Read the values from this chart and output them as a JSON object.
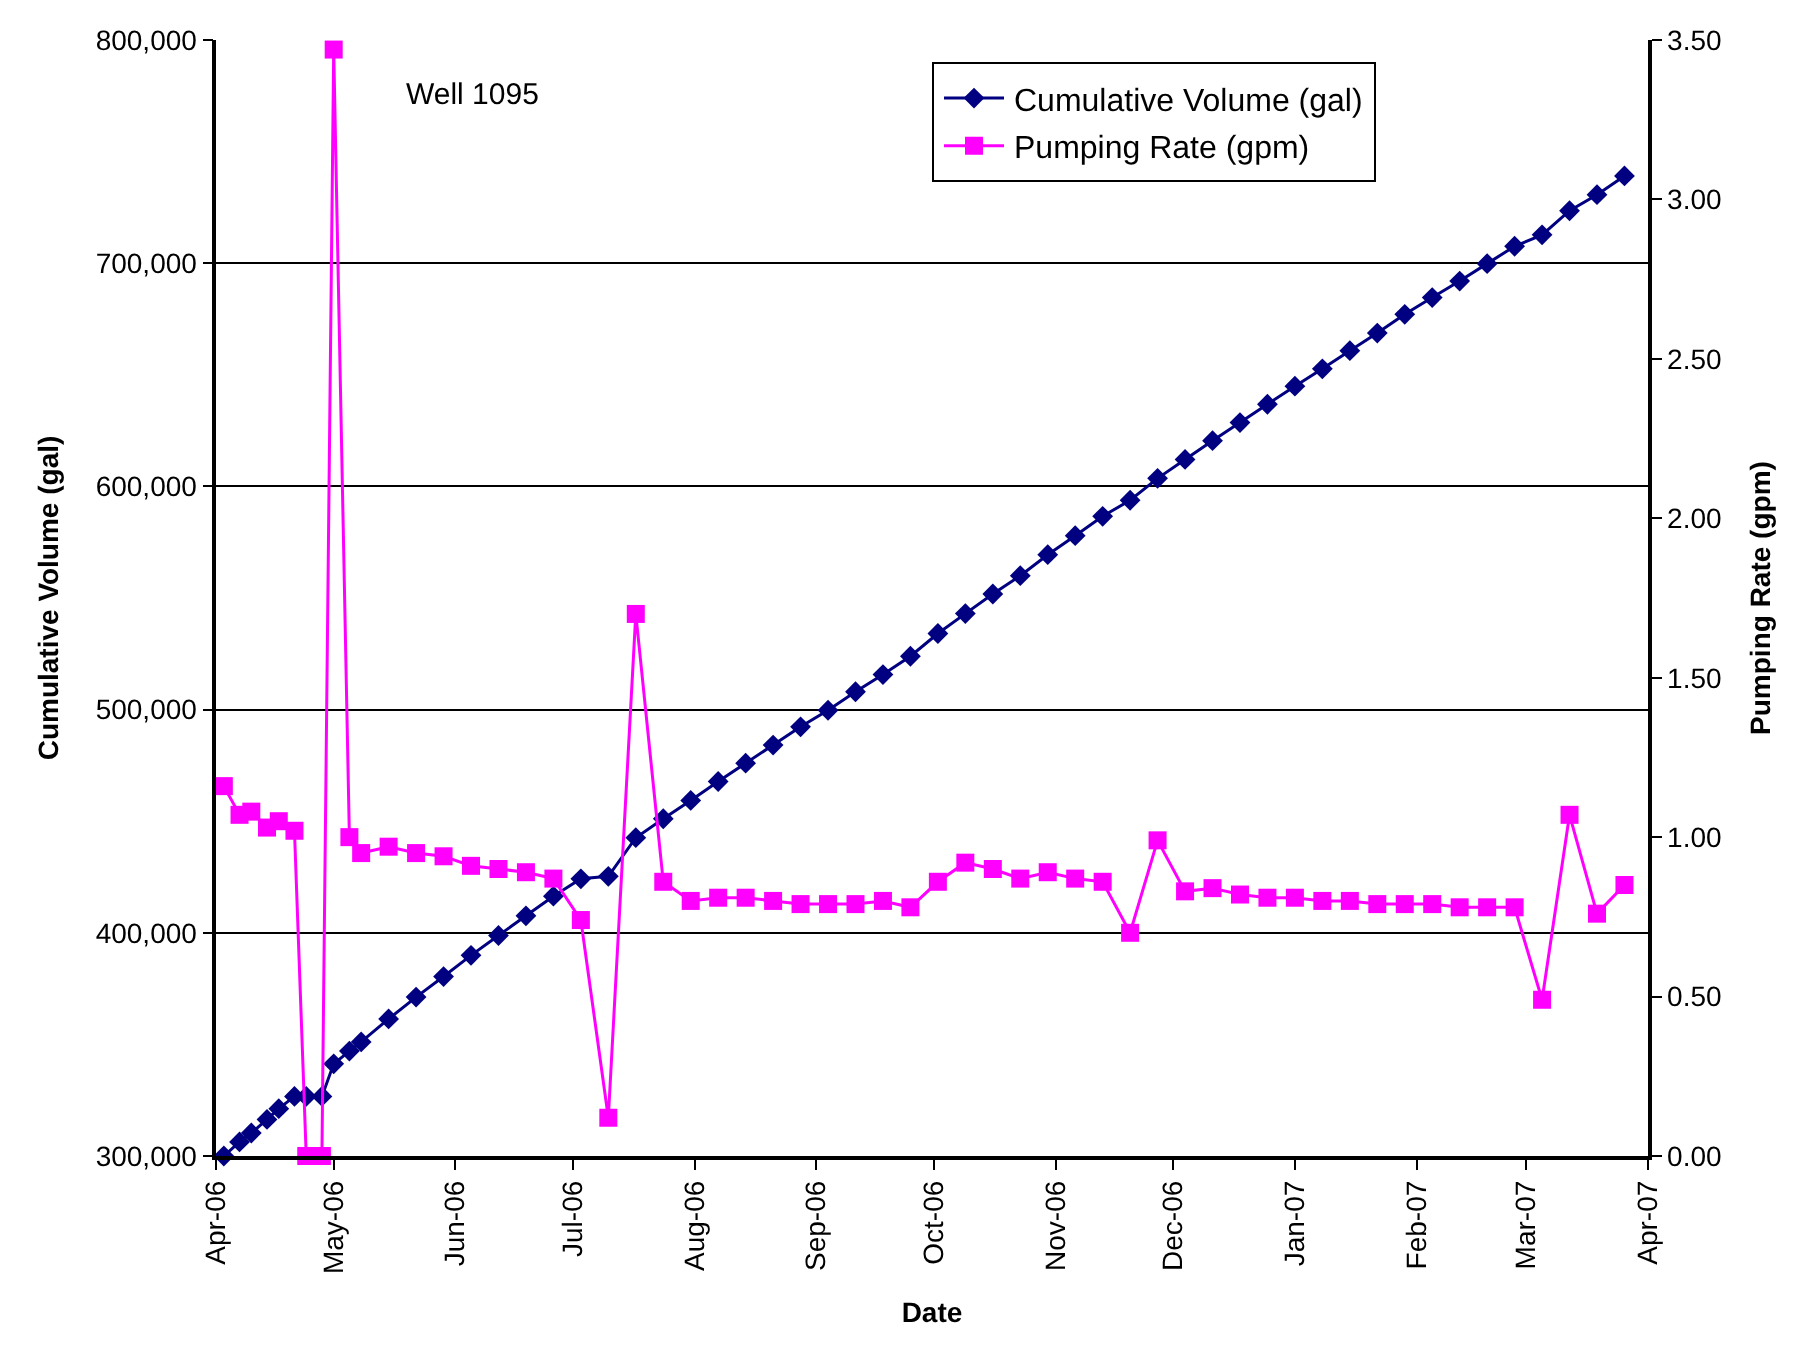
{
  "chart_data": {
    "type": "line",
    "xlabel": "Date",
    "ylabel": "Cumulative Volume (gal)",
    "y2label": "Pumping Rate (gpm)",
    "annotations": [
      "Well 1095"
    ],
    "x": [
      "2006-04-03",
      "2006-04-07",
      "2006-04-10",
      "2006-04-14",
      "2006-04-17",
      "2006-04-21",
      "2006-04-24",
      "2006-04-28",
      "2006-05-01",
      "2006-05-05",
      "2006-05-08",
      "2006-05-15",
      "2006-05-22",
      "2006-05-29",
      "2006-06-05",
      "2006-06-12",
      "2006-06-19",
      "2006-06-26",
      "2006-07-03",
      "2006-07-10",
      "2006-07-17",
      "2006-07-24",
      "2006-07-31",
      "2006-08-07",
      "2006-08-14",
      "2006-08-21",
      "2006-08-28",
      "2006-09-04",
      "2006-09-11",
      "2006-09-18",
      "2006-09-25",
      "2006-10-02",
      "2006-10-09",
      "2006-10-16",
      "2006-10-23",
      "2006-10-30",
      "2006-11-06",
      "2006-11-13",
      "2006-11-20",
      "2006-11-27",
      "2006-12-04",
      "2006-12-11",
      "2006-12-18",
      "2006-12-25",
      "2007-01-01",
      "2007-01-08",
      "2007-01-15",
      "2007-01-22",
      "2007-01-29",
      "2007-02-05",
      "2007-02-12",
      "2007-02-19",
      "2007-02-26",
      "2007-03-05",
      "2007-03-12",
      "2007-03-19",
      "2007-03-26"
    ],
    "series": [
      {
        "name": "Cumulative Volume (gal)",
        "color": "#000080",
        "marker": "diamond",
        "values": [
          300000,
          306300,
          310300,
          316400,
          321200,
          326700,
          326700,
          326700,
          341300,
          347000,
          351100,
          361400,
          371200,
          380400,
          389900,
          398800,
          407600,
          416400,
          424200,
          425300,
          442600,
          451100,
          459300,
          467800,
          476000,
          484100,
          492300,
          499700,
          508000,
          515700,
          523900,
          534100,
          543000,
          551800,
          560000,
          569400,
          577900,
          586600,
          593800,
          603600,
          612100,
          620500,
          628600,
          636800,
          644900,
          652700,
          660800,
          668700,
          677100,
          684600,
          692000,
          699800,
          707600,
          712700,
          723500,
          730700,
          739100
        ]
      },
      {
        "name": "Pumping Rate (gpm)",
        "color": "#ff00ff",
        "marker": "square",
        "axis": "y2",
        "values": [
          1.16,
          1.07,
          1.08,
          1.03,
          1.05,
          1.02,
          0,
          0,
          3.47,
          1.0,
          0.95,
          0.97,
          0.95,
          0.94,
          0.91,
          0.9,
          0.89,
          0.87,
          0.74,
          0.12,
          1.7,
          0.86,
          0.8,
          0.81,
          0.81,
          0.8,
          0.79,
          0.79,
          0.79,
          0.8,
          0.78,
          0.86,
          0.92,
          0.9,
          0.87,
          0.89,
          0.87,
          0.86,
          0.7,
          0.99,
          0.83,
          0.84,
          0.82,
          0.81,
          0.81,
          0.8,
          0.8,
          0.79,
          0.79,
          0.79,
          0.78,
          0.78,
          0.78,
          0.49,
          1.07,
          0.76,
          0.85
        ]
      }
    ],
    "xlim": [
      "2006-04-01",
      "2007-04-01"
    ],
    "xticks": [
      {
        "value": "2006-04-01",
        "label": "Apr-06"
      },
      {
        "value": "2006-05-01",
        "label": "May-06"
      },
      {
        "value": "2006-06-01",
        "label": "Jun-06"
      },
      {
        "value": "2006-07-01",
        "label": "Jul-06"
      },
      {
        "value": "2006-08-01",
        "label": "Aug-06"
      },
      {
        "value": "2006-09-01",
        "label": "Sep-06"
      },
      {
        "value": "2006-10-01",
        "label": "Oct-06"
      },
      {
        "value": "2006-11-01",
        "label": "Nov-06"
      },
      {
        "value": "2006-12-01",
        "label": "Dec-06"
      },
      {
        "value": "2007-01-01",
        "label": "Jan-07"
      },
      {
        "value": "2007-02-01",
        "label": "Feb-07"
      },
      {
        "value": "2007-03-01",
        "label": "Mar-07"
      },
      {
        "value": "2007-04-01",
        "label": "Apr-07"
      }
    ],
    "ylim": [
      300000,
      800000
    ],
    "yticks": [
      {
        "value": 300000,
        "label": "300,000"
      },
      {
        "value": 400000,
        "label": "400,000"
      },
      {
        "value": 500000,
        "label": "500,000"
      },
      {
        "value": 600000,
        "label": "600,000"
      },
      {
        "value": 700000,
        "label": "700,000"
      },
      {
        "value": 800000,
        "label": "800,000"
      }
    ],
    "y2lim": [
      0,
      3.5
    ],
    "y2ticks": [
      {
        "value": 0,
        "label": "0.00"
      },
      {
        "value": 0.5,
        "label": "0.50"
      },
      {
        "value": 1,
        "label": "1.00"
      },
      {
        "value": 1.5,
        "label": "1.50"
      },
      {
        "value": 2,
        "label": "2.00"
      },
      {
        "value": 2.5,
        "label": "2.50"
      },
      {
        "value": 3,
        "label": "3.00"
      },
      {
        "value": 3.5,
        "label": "3.50"
      }
    ],
    "grid": "y",
    "legend": "top right",
    "line_style": "solid"
  }
}
